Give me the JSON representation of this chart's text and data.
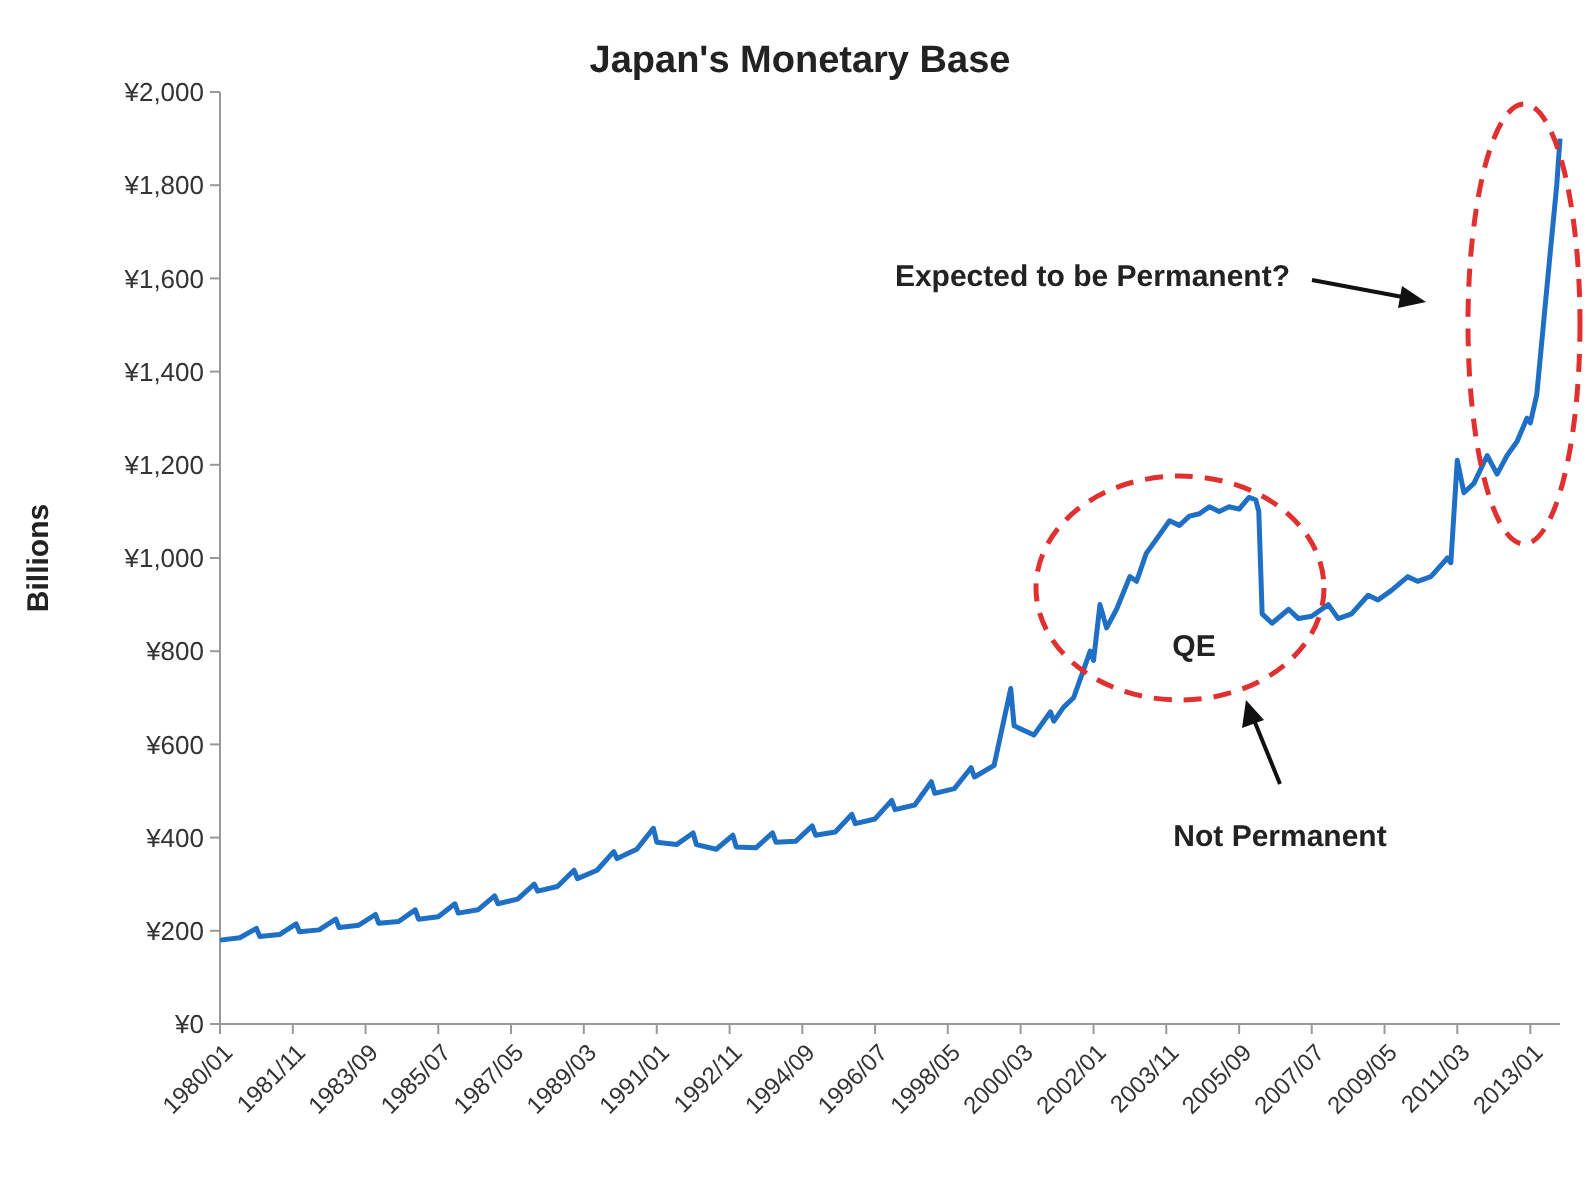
{
  "chart_data": {
    "type": "line",
    "title": "Japan's Monetary Base",
    "ylabel": "Billions",
    "annotations": [
      "Expected to be Permanent?",
      "QE",
      "Not Permanent"
    ],
    "x": [
      "1980-01",
      "1980-07",
      "1980-12",
      "1981-01",
      "1981-07",
      "1981-12",
      "1982-01",
      "1982-07",
      "1982-12",
      "1983-01",
      "1983-07",
      "1983-12",
      "1984-01",
      "1984-07",
      "1984-12",
      "1985-01",
      "1985-07",
      "1985-12",
      "1986-01",
      "1986-07",
      "1986-12",
      "1987-01",
      "1987-07",
      "1987-12",
      "1988-01",
      "1988-07",
      "1988-12",
      "1989-01",
      "1989-07",
      "1989-12",
      "1990-01",
      "1990-07",
      "1990-12",
      "1991-01",
      "1991-07",
      "1991-12",
      "1992-01",
      "1992-07",
      "1992-12",
      "1993-01",
      "1993-07",
      "1993-12",
      "1994-01",
      "1994-07",
      "1994-12",
      "1995-01",
      "1995-07",
      "1995-12",
      "1996-01",
      "1996-07",
      "1996-12",
      "1997-01",
      "1997-07",
      "1997-12",
      "1998-01",
      "1998-07",
      "1998-12",
      "1999-01",
      "1999-07",
      "1999-12",
      "2000-01",
      "2000-07",
      "2000-12",
      "2001-01",
      "2001-04",
      "2001-07",
      "2001-10",
      "2001-12",
      "2002-01",
      "2002-03",
      "2002-05",
      "2002-08",
      "2002-12",
      "2003-02",
      "2003-05",
      "2003-08",
      "2003-12",
      "2004-03",
      "2004-06",
      "2004-09",
      "2004-12",
      "2005-03",
      "2005-06",
      "2005-09",
      "2005-12",
      "2006-02",
      "2006-03",
      "2006-04",
      "2006-07",
      "2006-12",
      "2007-03",
      "2007-07",
      "2007-12",
      "2008-03",
      "2008-07",
      "2008-12",
      "2009-03",
      "2009-07",
      "2009-12",
      "2010-03",
      "2010-07",
      "2010-12",
      "2011-01",
      "2011-03",
      "2011-05",
      "2011-08",
      "2011-12",
      "2012-03",
      "2012-06",
      "2012-09",
      "2012-12",
      "2013-01",
      "2013-03",
      "2013-05",
      "2013-07",
      "2013-09",
      "2013-10"
    ],
    "series": [
      {
        "color": "#1f6fc5",
        "values": [
          180,
          185,
          205,
          188,
          192,
          215,
          198,
          202,
          225,
          207,
          212,
          235,
          216,
          220,
          245,
          225,
          230,
          258,
          238,
          245,
          275,
          258,
          268,
          300,
          285,
          295,
          330,
          312,
          330,
          370,
          355,
          375,
          420,
          390,
          385,
          410,
          385,
          375,
          405,
          380,
          378,
          410,
          390,
          392,
          425,
          405,
          412,
          450,
          430,
          440,
          480,
          460,
          470,
          520,
          495,
          505,
          550,
          530,
          555,
          720,
          640,
          620,
          670,
          650,
          680,
          700,
          760,
          800,
          780,
          900,
          850,
          890,
          960,
          950,
          1010,
          1040,
          1080,
          1070,
          1090,
          1095,
          1110,
          1100,
          1110,
          1105,
          1130,
          1125,
          1100,
          880,
          860,
          890,
          870,
          875,
          900,
          870,
          880,
          920,
          910,
          930,
          960,
          950,
          960,
          1000,
          990,
          1210,
          1140,
          1160,
          1220,
          1180,
          1220,
          1250,
          1300,
          1290,
          1350,
          1500,
          1650,
          1800,
          1900
        ]
      }
    ],
    "xlim": [
      "1980-01",
      "2013-10"
    ],
    "xticks": [
      {
        "value": "1980-01",
        "label": "1980/01"
      },
      {
        "value": "1981-11",
        "label": "1981/11"
      },
      {
        "value": "1983-09",
        "label": "1983/09"
      },
      {
        "value": "1985-07",
        "label": "1985/07"
      },
      {
        "value": "1987-05",
        "label": "1987/05"
      },
      {
        "value": "1989-03",
        "label": "1989/03"
      },
      {
        "value": "1991-01",
        "label": "1991/01"
      },
      {
        "value": "1992-11",
        "label": "1992/11"
      },
      {
        "value": "1994-09",
        "label": "1994/09"
      },
      {
        "value": "1996-07",
        "label": "1996/07"
      },
      {
        "value": "1998-05",
        "label": "1998/05"
      },
      {
        "value": "2000-03",
        "label": "2000/03"
      },
      {
        "value": "2002-01",
        "label": "2002/01"
      },
      {
        "value": "2003-11",
        "label": "2003/11"
      },
      {
        "value": "2005-09",
        "label": "2005/09"
      },
      {
        "value": "2007-07",
        "label": "2007/07"
      },
      {
        "value": "2009-05",
        "label": "2009/05"
      },
      {
        "value": "2011-03",
        "label": "2011/03"
      },
      {
        "value": "2013-01",
        "label": "2013/01"
      }
    ],
    "ylim": [
      0,
      2000
    ],
    "yticks": [
      {
        "value": 0,
        "label": "¥0"
      },
      {
        "value": 200,
        "label": "¥200"
      },
      {
        "value": 400,
        "label": "¥400"
      },
      {
        "value": 600,
        "label": "¥600"
      },
      {
        "value": 800,
        "label": "¥800"
      },
      {
        "value": 1000,
        "label": "¥1,000"
      },
      {
        "value": 1200,
        "label": "¥1,200"
      },
      {
        "value": 1400,
        "label": "¥1,400"
      },
      {
        "value": 1600,
        "label": "¥1,600"
      },
      {
        "value": 1800,
        "label": "¥1,800"
      },
      {
        "value": 2000,
        "label": "¥2,000"
      }
    ],
    "grid": false,
    "marker": "none",
    "line_style": "solid"
  }
}
